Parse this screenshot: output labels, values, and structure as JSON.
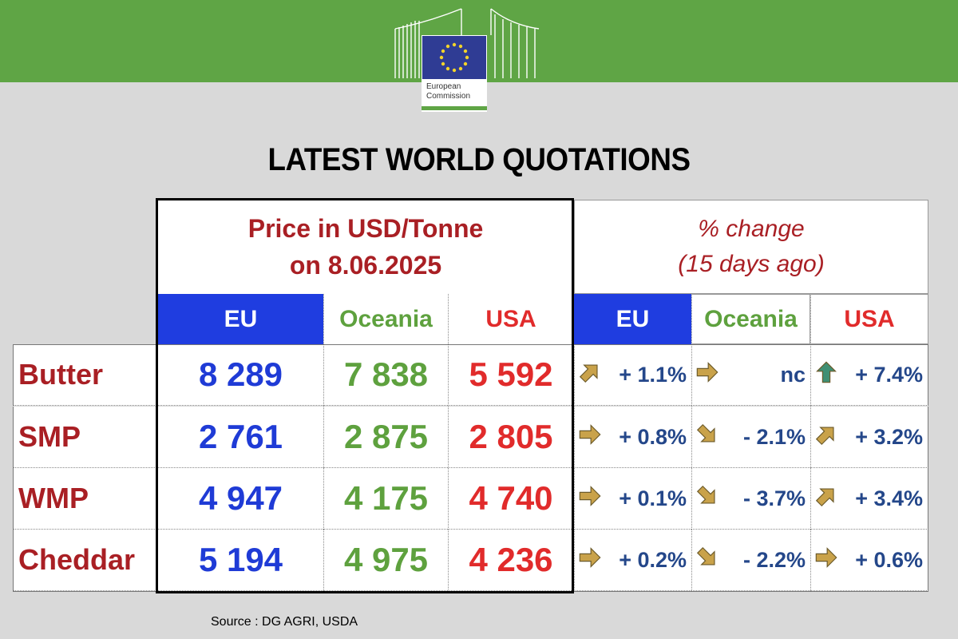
{
  "logo": {
    "line1": "European",
    "line2": "Commission"
  },
  "title": "LATEST WORLD QUOTATIONS",
  "price_header": {
    "line1": "Price in USD/Tonne",
    "line2": "on 8.06.2025"
  },
  "change_header": {
    "line1": "% change",
    "line2": "(15 days ago)"
  },
  "columns": {
    "eu": "EU",
    "oceania": "Oceania",
    "usa": "USA"
  },
  "rows": [
    {
      "product": "Butter",
      "eu": "8 289",
      "oceania": "7 838",
      "usa": "5 592",
      "eu_change": "+ 1.1%",
      "oceania_change": "nc",
      "usa_change": "+ 7.4%",
      "eu_arrow": "arrow-up-right",
      "oceania_arrow": "arrow-right",
      "usa_arrow": "arrow-up"
    },
    {
      "product": "SMP",
      "eu": "2 761",
      "oceania": "2 875",
      "usa": "2 805",
      "eu_change": "+ 0.8%",
      "oceania_change": "- 2.1%",
      "usa_change": "+ 3.2%",
      "eu_arrow": "arrow-right",
      "oceania_arrow": "arrow-down-right",
      "usa_arrow": "arrow-up-right"
    },
    {
      "product": "WMP",
      "eu": "4 947",
      "oceania": "4 175",
      "usa": "4 740",
      "eu_change": "+ 0.1%",
      "oceania_change": "- 3.7%",
      "usa_change": "+ 3.4%",
      "eu_arrow": "arrow-right",
      "oceania_arrow": "arrow-down-right",
      "usa_arrow": "arrow-up-right"
    },
    {
      "product": "Cheddar",
      "eu": "5 194",
      "oceania": "4 975",
      "usa": "4 236",
      "eu_change": "+ 0.2%",
      "oceania_change": "- 2.2%",
      "usa_change": "+ 0.6%",
      "eu_arrow": "arrow-right",
      "oceania_arrow": "arrow-down-right",
      "usa_arrow": "arrow-right"
    }
  ],
  "colors": {
    "arrow_gold": "#c9a24a",
    "arrow_green": "#3f8f73",
    "header_red": "#a91f24",
    "eu_blue": "#1f3de0"
  },
  "source": "Source : DG AGRI, USDA"
}
